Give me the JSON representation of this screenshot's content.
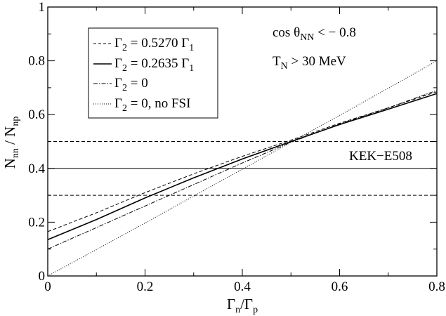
{
  "chart_data": {
    "type": "line",
    "xlabel": {
      "main": "Γ",
      "sub1": "n",
      "mid": "/Γ",
      "sub2": "p"
    },
    "ylabel": {
      "main": "N",
      "sub1": "nn",
      "mid": " / N",
      "sub2": "np"
    },
    "xlim": [
      0,
      0.8
    ],
    "ylim": [
      0,
      1
    ],
    "xticks": [
      0,
      0.2,
      0.4,
      0.6,
      0.8
    ],
    "yticks": [
      0,
      0.2,
      0.4,
      0.6,
      0.8,
      1
    ],
    "xtick_labels": [
      "0",
      "0.2",
      "0.4",
      "0.6",
      "0.8"
    ],
    "ytick_labels": [
      "0",
      "0.2",
      "0.4",
      "0.6",
      "0.8",
      "1"
    ],
    "grid": false,
    "legend": "top-left",
    "series": [
      {
        "name": {
          "pre": "Γ",
          "sub1": "2",
          "post": " = 0.5270 Γ",
          "sub2": "1"
        },
        "style": "dashed",
        "x": [
          0,
          0.1,
          0.2,
          0.3,
          0.4,
          0.5,
          0.6,
          0.7,
          0.8
        ],
        "y": [
          0.165,
          0.235,
          0.31,
          0.38,
          0.445,
          0.505,
          0.568,
          0.625,
          0.685
        ]
      },
      {
        "name": {
          "pre": "Γ",
          "sub1": "2",
          "post": " = 0.2635 Γ",
          "sub2": "1"
        },
        "style": "solid",
        "x": [
          0,
          0.1,
          0.2,
          0.3,
          0.4,
          0.5,
          0.6,
          0.7,
          0.8
        ],
        "y": [
          0.135,
          0.21,
          0.29,
          0.365,
          0.435,
          0.5,
          0.563,
          0.62,
          0.678
        ]
      },
      {
        "name": {
          "pre": "Γ",
          "sub1": "2",
          "post": " = 0",
          "sub2": ""
        },
        "style": "dashdot",
        "x": [
          0,
          0.1,
          0.2,
          0.3,
          0.4,
          0.5,
          0.6,
          0.7,
          0.8
        ],
        "y": [
          0.1,
          0.18,
          0.26,
          0.34,
          0.42,
          0.497,
          0.565,
          0.625,
          0.69
        ]
      },
      {
        "name": {
          "pre": "Γ",
          "sub1": "2",
          "post": " = 0, no FSI",
          "sub2": ""
        },
        "style": "dotted",
        "x": [
          0,
          0.1,
          0.2,
          0.3,
          0.4,
          0.5,
          0.6,
          0.7,
          0.8
        ],
        "y": [
          0,
          0.098,
          0.197,
          0.297,
          0.397,
          0.497,
          0.597,
          0.698,
          0.8
        ]
      }
    ],
    "horizontal_lines": [
      {
        "y": 0.5,
        "style": "dashed"
      },
      {
        "y": 0.4,
        "style": "solid"
      },
      {
        "y": 0.3,
        "style": "dashed"
      }
    ],
    "annotations": {
      "cuts1": {
        "pre": "cos θ",
        "sub": "NN",
        "post": " < − 0.8"
      },
      "cuts2": {
        "pre": "T",
        "sub": "N",
        "post": " > 30 MeV"
      },
      "exp": "KEK−E508"
    }
  }
}
